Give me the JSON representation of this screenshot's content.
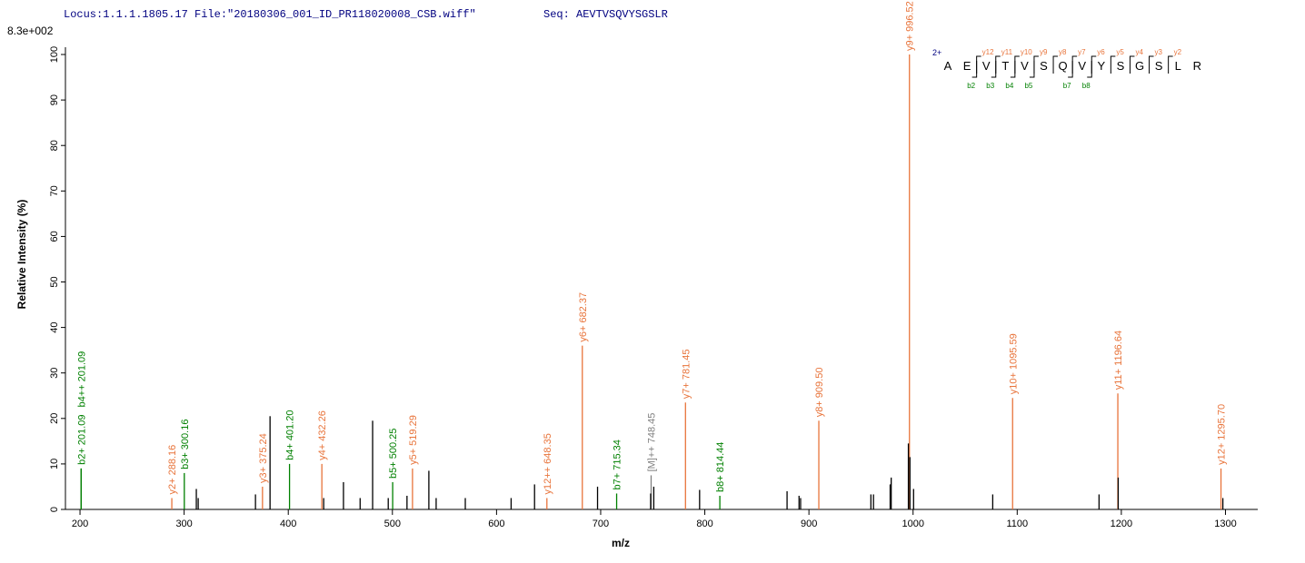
{
  "chart_data": {
    "type": "spectrum",
    "title": "Locus:1.1.1.1805.17 File:\"20180306_001_ID_PR118020008_CSB.wiff\"",
    "sequence_label": "Seq: AEVTVSQVYSGSLR",
    "scale_label": "8.3e+002",
    "x_label": "m/z",
    "y_label": "Relative   Intensity (%)",
    "xlim": [
      186,
      1331
    ],
    "xticks": [
      200,
      300,
      400,
      500,
      600,
      700,
      800,
      900,
      1000,
      1100,
      1200,
      1300
    ],
    "ylim": [
      0,
      101.6
    ],
    "yticks": [
      0,
      10,
      20,
      30,
      40,
      50,
      60,
      70,
      80,
      90,
      100
    ],
    "charge_label": "2+",
    "sequence": [
      "A",
      "E",
      "V",
      "T",
      "V",
      "S",
      "Q",
      "V",
      "Y",
      "S",
      "G",
      "S",
      "L",
      "R"
    ],
    "y_ions": [
      "y12",
      "y11",
      "y10",
      "y9",
      "y8",
      "y7",
      "y6",
      "y5",
      "y4",
      "y3",
      "y2"
    ],
    "b_ions": [
      "b2",
      "b3",
      "b4",
      "b5",
      "b7",
      "b8"
    ],
    "peaks": [
      {
        "x": 201.09,
        "y": 9,
        "label": "b2+ 201.09",
        "color": "#008000"
      },
      {
        "x": 201.09,
        "y": 9,
        "label": "b4++ 201.09",
        "color": "#008000"
      },
      {
        "x": 288.16,
        "y": 2.5,
        "label": "y2+ 288.16",
        "color": "#e8743b"
      },
      {
        "x": 300.16,
        "y": 8,
        "label": "b3+ 300.16",
        "color": "#008000"
      },
      {
        "x": 375.24,
        "y": 5,
        "label": "y3+ 375.24",
        "color": "#e8743b"
      },
      {
        "x": 401.2,
        "y": 10,
        "label": "b4+ 401.20",
        "color": "#008000"
      },
      {
        "x": 432.26,
        "y": 10,
        "label": "y4+ 432.26",
        "color": "#e8743b"
      },
      {
        "x": 500.25,
        "y": 6,
        "label": "b5+ 500.25",
        "color": "#008000"
      },
      {
        "x": 519.29,
        "y": 9,
        "label": "y5+ 519.29",
        "color": "#e8743b"
      },
      {
        "x": 648.35,
        "y": 2.5,
        "label": "y12++ 648.35",
        "color": "#e8743b"
      },
      {
        "x": 682.37,
        "y": 36,
        "label": "y6+ 682.37",
        "color": "#e8743b"
      },
      {
        "x": 715.34,
        "y": 3.5,
        "label": "b7+ 715.34",
        "color": "#008000"
      },
      {
        "x": 748.45,
        "y": 7.5,
        "label": "[M]++ 748.45",
        "color": "#808080"
      },
      {
        "x": 781.45,
        "y": 23.5,
        "label": "y7+ 781.45",
        "color": "#e8743b"
      },
      {
        "x": 814.44,
        "y": 3,
        "label": "b8+ 814.44",
        "color": "#008000"
      },
      {
        "x": 909.5,
        "y": 19.5,
        "label": "y8+ 909.50",
        "color": "#e8743b"
      },
      {
        "x": 996.52,
        "y": 100,
        "label": "y9+ 996.52",
        "color": "#e8743b"
      },
      {
        "x": 1095.59,
        "y": 24.5,
        "label": "y10+ 1095.59",
        "color": "#e8743b"
      },
      {
        "x": 1196.64,
        "y": 25.5,
        "label": "y11+ 1196.64",
        "color": "#e8743b"
      },
      {
        "x": 1295.7,
        "y": 9,
        "label": "y12+ 1295.70",
        "color": "#e8743b"
      },
      {
        "x": 311.7,
        "y": 4.5,
        "color": "#000000"
      },
      {
        "x": 313.5,
        "y": 2.5,
        "color": "#000000"
      },
      {
        "x": 368.5,
        "y": 3.3,
        "color": "#000000"
      },
      {
        "x": 382.5,
        "y": 20.5,
        "color": "#000000"
      },
      {
        "x": 434,
        "y": 2.5,
        "color": "#000000"
      },
      {
        "x": 453,
        "y": 6,
        "color": "#000000"
      },
      {
        "x": 469,
        "y": 2.5,
        "color": "#000000"
      },
      {
        "x": 481,
        "y": 19.5,
        "color": "#000000"
      },
      {
        "x": 496,
        "y": 2.5,
        "color": "#000000"
      },
      {
        "x": 514,
        "y": 3,
        "color": "#000000"
      },
      {
        "x": 535,
        "y": 8.5,
        "color": "#000000"
      },
      {
        "x": 542,
        "y": 2.5,
        "color": "#000000"
      },
      {
        "x": 570,
        "y": 2.5,
        "color": "#000000"
      },
      {
        "x": 614,
        "y": 2.5,
        "color": "#000000"
      },
      {
        "x": 636.5,
        "y": 5.5,
        "color": "#000000"
      },
      {
        "x": 697,
        "y": 5,
        "color": "#000000"
      },
      {
        "x": 748,
        "y": 3.5,
        "color": "#000000"
      },
      {
        "x": 751,
        "y": 5,
        "color": "#000000"
      },
      {
        "x": 795,
        "y": 4.3,
        "color": "#000000"
      },
      {
        "x": 879,
        "y": 4,
        "color": "#000000"
      },
      {
        "x": 890.5,
        "y": 3,
        "color": "#000000"
      },
      {
        "x": 892,
        "y": 2.5,
        "color": "#000000"
      },
      {
        "x": 959.5,
        "y": 3.3,
        "color": "#000000"
      },
      {
        "x": 962,
        "y": 3.3,
        "color": "#000000"
      },
      {
        "x": 978,
        "y": 5.5,
        "color": "#000000"
      },
      {
        "x": 979,
        "y": 7,
        "color": "#000000"
      },
      {
        "x": 995.5,
        "y": 14.5,
        "color": "#000000"
      },
      {
        "x": 997,
        "y": 11.5,
        "color": "#000000"
      },
      {
        "x": 1000.5,
        "y": 4.5,
        "color": "#000000"
      },
      {
        "x": 1076.5,
        "y": 3.3,
        "color": "#000000"
      },
      {
        "x": 1178.6,
        "y": 3.3,
        "color": "#000000"
      },
      {
        "x": 1197,
        "y": 7,
        "color": "#000000"
      },
      {
        "x": 1297.5,
        "y": 2.5,
        "color": "#000000"
      }
    ]
  }
}
